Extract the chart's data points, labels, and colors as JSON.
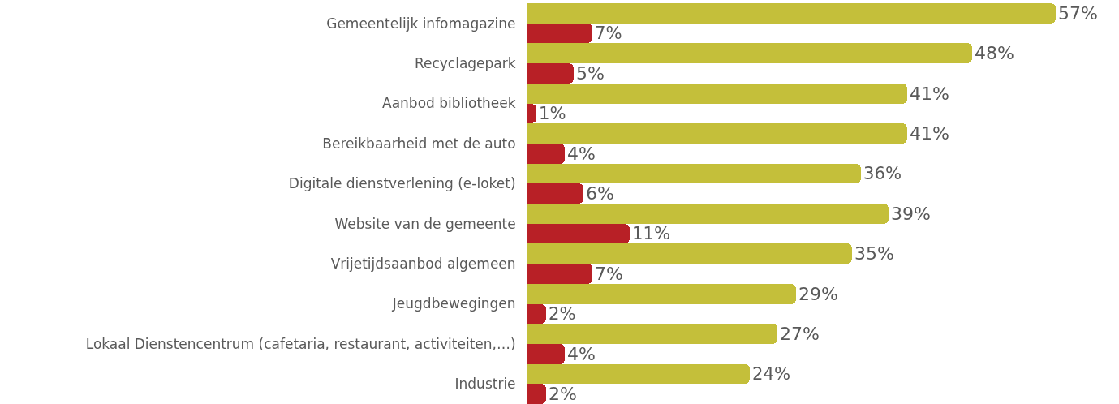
{
  "chart_data": {
    "type": "bar",
    "orientation": "horizontal",
    "categories": [
      "Gemeentelijk infomagazine",
      "Recyclagepark",
      "Aanbod bibliotheek",
      "Bereikbaarheid met de auto",
      "Digitale dienstverlening (e-loket)",
      "Website van de gemeente",
      "Vrijetijdsaanbod algemeen",
      "Jeugdbewegingen",
      "Lokaal Dienstencentrum (cafetaria, restaurant, activiteiten,…)",
      "Industrie"
    ],
    "series": [
      {
        "color": "#c4bf3a",
        "values": [
          57,
          48,
          41,
          41,
          36,
          39,
          35,
          29,
          27,
          24
        ],
        "value_labels": [
          "57%",
          "48%",
          "41%",
          "41%",
          "36%",
          "39%",
          "35%",
          "29%",
          "27%",
          "24%"
        ]
      },
      {
        "color": "#b82026",
        "values": [
          7,
          5,
          1,
          4,
          6,
          11,
          7,
          2,
          4,
          2
        ],
        "value_labels": [
          "7%",
          "5%",
          "1%",
          "4%",
          "6%",
          "11%",
          "7%",
          "2%",
          "4%",
          "2%"
        ]
      }
    ],
    "tick_labels": "y"
  }
}
